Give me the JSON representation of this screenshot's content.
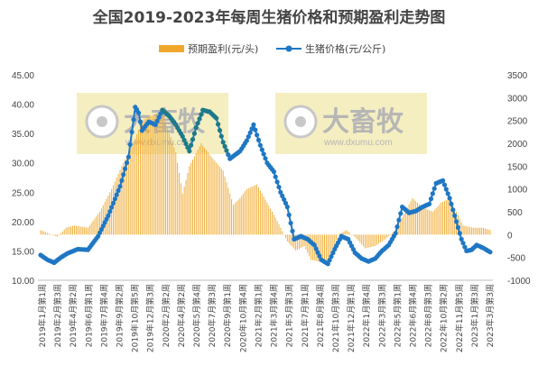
{
  "chart_data": {
    "type": "bar+line",
    "title": "全国2019-2023年每周生猪价格和预期盈利走势图",
    "legend": {
      "placement": "top-center",
      "bar_label": "预期盈利(元/头)",
      "line_label": "生猪价格(元/公斤)"
    },
    "colors": {
      "bar": "#f0a82c",
      "line": "#1f77c4",
      "line_late": "#1e7a8a",
      "watermark_bg": "#f5eec0"
    },
    "watermark_text": "大畜牧",
    "watermark_sub": "www.dxumu.com",
    "x_labels": [
      "2019年1月第1周",
      "2019年2月第3周",
      "2019年4月第2周",
      "2019年6月第1周",
      "2019年7月第4周",
      "2019年9月第2周",
      "2019年10月第5周",
      "2019年12月第3周",
      "2020年2月第2周",
      "2020年4月第2周",
      "2020年5月第4周",
      "2020年7月第3周",
      "2020年9月第1周",
      "2020年10月第4周",
      "2021年2月第1周",
      "2021年3月第4周",
      "2021年5月第3周",
      "2021年7月第1周",
      "2021年8月第4周",
      "2021年10月第3周",
      "2021年12月第1周",
      "2022年1月第4周",
      "2022年3月第3周",
      "2022年5月第1周",
      "2022年6月第4周",
      "2022年8月第3周",
      "2022年10月第2周",
      "2022年11月第5周",
      "2023年1月第3周",
      "2023年3月第3周"
    ],
    "y_left": {
      "min": 10,
      "max": 45,
      "step": 5,
      "ticks": [
        "10.00",
        "15.00",
        "20.00",
        "25.00",
        "30.00",
        "35.00",
        "40.00",
        "45.00"
      ]
    },
    "y_right": {
      "min": -1000,
      "max": 3500,
      "step": 500,
      "ticks": [
        "-1000",
        "-500",
        "0",
        "500",
        "1000",
        "1500",
        "2000",
        "2500",
        "3000",
        "3500"
      ]
    },
    "profit_anchors": [
      [
        0,
        100
      ],
      [
        10,
        -50
      ],
      [
        15,
        150
      ],
      [
        20,
        200
      ],
      [
        28,
        150
      ],
      [
        35,
        500
      ],
      [
        42,
        1000
      ],
      [
        48,
        1500
      ],
      [
        55,
        2000
      ],
      [
        60,
        2500
      ],
      [
        65,
        2600
      ],
      [
        72,
        2700
      ],
      [
        80,
        1800
      ],
      [
        84,
        900
      ],
      [
        88,
        1500
      ],
      [
        95,
        2000
      ],
      [
        100,
        1750
      ],
      [
        108,
        1400
      ],
      [
        114,
        650
      ],
      [
        118,
        800
      ],
      [
        122,
        1000
      ],
      [
        128,
        1100
      ],
      [
        134,
        700
      ],
      [
        140,
        300
      ],
      [
        146,
        -150
      ],
      [
        151,
        -350
      ],
      [
        156,
        -250
      ],
      [
        160,
        -550
      ],
      [
        166,
        -600
      ],
      [
        172,
        -500
      ],
      [
        176,
        0
      ],
      [
        181,
        100
      ],
      [
        186,
        -50
      ],
      [
        192,
        -300
      ],
      [
        198,
        -250
      ],
      [
        204,
        -100
      ],
      [
        210,
        100
      ],
      [
        215,
        450
      ],
      [
        220,
        800
      ],
      [
        226,
        600
      ],
      [
        232,
        500
      ],
      [
        237,
        700
      ],
      [
        242,
        800
      ],
      [
        246,
        500
      ],
      [
        250,
        200
      ],
      [
        256,
        150
      ],
      [
        262,
        150
      ],
      [
        266,
        100
      ]
    ],
    "price_anchors": [
      [
        0,
        14.3
      ],
      [
        4,
        13.5
      ],
      [
        8,
        13.0
      ],
      [
        12,
        13.9
      ],
      [
        16,
        14.6
      ],
      [
        22,
        15.3
      ],
      [
        28,
        15.2
      ],
      [
        34,
        17.5
      ],
      [
        40,
        21.0
      ],
      [
        47,
        26.0
      ],
      [
        52,
        31.0
      ],
      [
        56,
        39.5
      ],
      [
        58,
        38.5
      ],
      [
        60,
        35.5
      ],
      [
        64,
        37.0
      ],
      [
        68,
        36.5
      ],
      [
        72,
        39.0
      ],
      [
        76,
        38.0
      ],
      [
        80,
        36.5
      ],
      [
        84,
        34.5
      ],
      [
        88,
        32.0
      ],
      [
        92,
        36.0
      ],
      [
        96,
        39.0
      ],
      [
        100,
        38.7
      ],
      [
        104,
        37.6
      ],
      [
        108,
        33.5
      ],
      [
        112,
        30.7
      ],
      [
        118,
        32.0
      ],
      [
        122,
        33.8
      ],
      [
        126,
        36.5
      ],
      [
        130,
        33.0
      ],
      [
        134,
        30.0
      ],
      [
        138,
        28.5
      ],
      [
        142,
        25.0
      ],
      [
        146,
        22.5
      ],
      [
        150,
        17.0
      ],
      [
        154,
        17.5
      ],
      [
        158,
        17.0
      ],
      [
        162,
        16.0
      ],
      [
        166,
        13.5
      ],
      [
        170,
        12.8
      ],
      [
        174,
        15.3
      ],
      [
        178,
        17.5
      ],
      [
        182,
        17.0
      ],
      [
        186,
        14.7
      ],
      [
        190,
        13.7
      ],
      [
        194,
        13.2
      ],
      [
        198,
        13.7
      ],
      [
        202,
        15.0
      ],
      [
        206,
        16.0
      ],
      [
        210,
        18.0
      ],
      [
        214,
        22.5
      ],
      [
        218,
        21.5
      ],
      [
        222,
        21.8
      ],
      [
        226,
        22.5
      ],
      [
        230,
        23.0
      ],
      [
        234,
        26.5
      ],
      [
        238,
        27.0
      ],
      [
        242,
        24.0
      ],
      [
        245,
        21.0
      ],
      [
        249,
        17.0
      ],
      [
        252,
        15.0
      ],
      [
        255,
        15.2
      ],
      [
        258,
        16.0
      ],
      [
        262,
        15.5
      ],
      [
        266,
        14.8
      ]
    ],
    "points": 267
  }
}
